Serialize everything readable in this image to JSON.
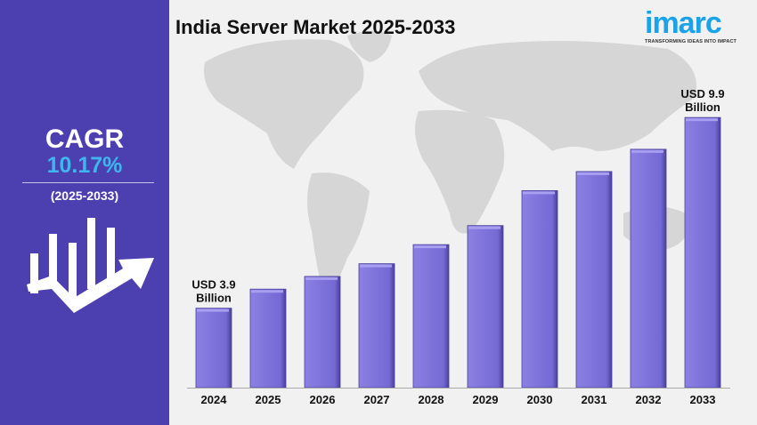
{
  "title": "India Server Market 2025-2033",
  "logo": {
    "text": "imarc",
    "tagline": "TRANSFORMING IDEAS INTO IMPACT"
  },
  "left_panel": {
    "cagr_label": "CAGR",
    "cagr_value": "10.17%",
    "period": "(2025-2033)"
  },
  "colors": {
    "panel": "#4c3fb0",
    "bar": "#7b6fd8",
    "cagr_value": "#3fb7ee",
    "logo": "#1aa3e8"
  },
  "chart_data": {
    "type": "bar",
    "title": "India Server Market 2025-2033",
    "categories": [
      "2024",
      "2025",
      "2026",
      "2027",
      "2028",
      "2029",
      "2030",
      "2031",
      "2032",
      "2033"
    ],
    "values": [
      3.9,
      4.5,
      4.9,
      5.3,
      5.9,
      6.5,
      7.6,
      8.2,
      8.9,
      9.9
    ],
    "unit": "USD Billion",
    "data_labels": [
      {
        "category": "2024",
        "line1": "USD 3.9",
        "line2": "Billion"
      },
      {
        "category": "2033",
        "line1": "USD 9.9",
        "line2": "Billion"
      }
    ],
    "ylim": [
      1.4,
      10.1
    ],
    "grid": false,
    "legend": "none"
  }
}
